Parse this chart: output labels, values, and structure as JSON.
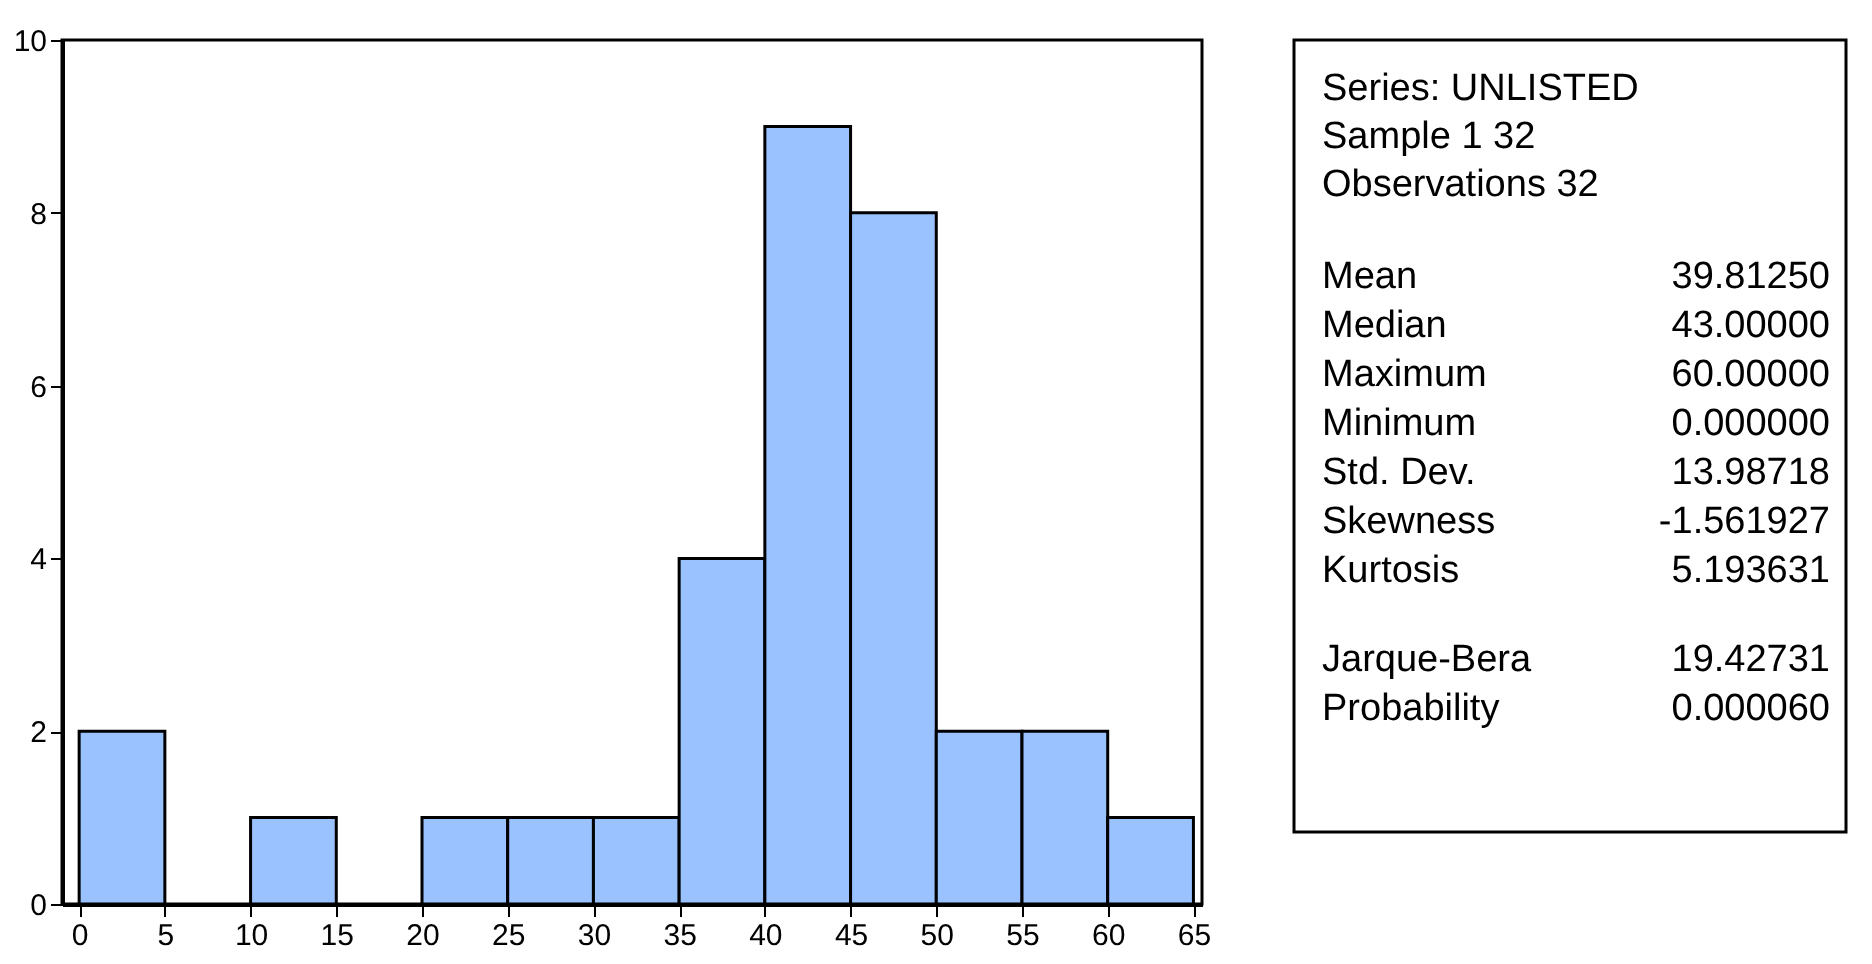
{
  "chart_data": [
    {
      "type": "histogram",
      "bins": [
        0,
        5,
        10,
        15,
        20,
        25,
        30,
        35,
        40,
        45,
        50,
        55,
        60,
        65
      ],
      "values": [
        2,
        0,
        1,
        0,
        1,
        1,
        1,
        4,
        9,
        8,
        2,
        2,
        1
      ],
      "color": "#99c2ff",
      "xlim": [
        -1,
        65.5
      ],
      "xticks": [
        0,
        5,
        10,
        15,
        20,
        25,
        30,
        35,
        40,
        45,
        50,
        55,
        60,
        65
      ],
      "ylim": [
        0,
        10
      ],
      "yticks": [
        0,
        2,
        4,
        6,
        8,
        10
      ],
      "grid": false
    },
    {
      "type": "other",
      "annotations": [
        "Series: UNLISTED",
        "Sample 1 32",
        "Observations 32",
        "Mean",
        "39.81250",
        "Median",
        "43.00000",
        "Maximum",
        "60.00000",
        "Minimum",
        "0.000000",
        "Std. Dev.",
        "13.98718",
        "Skewness",
        "-1.561927",
        "Kurtosis",
        "5.193631",
        "Jarque-Bera",
        "19.42731",
        "Probability",
        "0.000060"
      ]
    }
  ]
}
